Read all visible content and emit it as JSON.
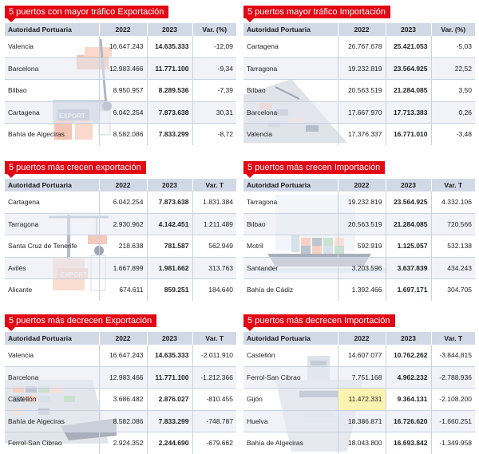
{
  "panels": [
    {
      "title": "5 puertos con mayor tráfico Exportación",
      "headers": [
        "Autoridad Portuaria",
        "2022",
        "2023",
        "Var. (%)"
      ],
      "rows": [
        [
          "Valencia",
          "16.647.243",
          "14.635.333",
          "-12,09"
        ],
        [
          "Barcelona",
          "12.983.466",
          "11.771.100",
          "-9,34"
        ],
        [
          "Bilbao",
          "8.950.957",
          "8.289.536",
          "-7,39"
        ],
        [
          "Cartagena",
          "6.042.254",
          "7.873.638",
          "30,31"
        ],
        [
          "Bahía de Algeciras",
          "8.582.086",
          "7.833.299",
          "-8,72"
        ]
      ],
      "illustration": "export-containers-icon",
      "illustration_label": "EXPORT"
    },
    {
      "title": "5 puertos mayor tráfico Importación",
      "headers": [
        "Autoridad Portuaria",
        "2022",
        "2023",
        "Var. (%)"
      ],
      "rows": [
        [
          "Cartagena",
          "26.767.678",
          "25.421.053",
          "-5,03"
        ],
        [
          "Tarragona",
          "19.232.819",
          "23.564.925",
          "22,52"
        ],
        [
          "Bilbao",
          "20.563.519",
          "21.284.085",
          "3,50"
        ],
        [
          "Barcelona",
          "17.667.970",
          "17.713.383",
          "0,26"
        ],
        [
          "Valencia",
          "17.376.337",
          "16.771.010",
          "-3,48"
        ]
      ],
      "illustration": "port-aerial-icon"
    },
    {
      "title": "5 puertos más crecen exportación",
      "headers": [
        "Autoridad Portuaria",
        "2022",
        "2023",
        "Var. T"
      ],
      "rows": [
        [
          "Cartagena",
          "6.042.254",
          "7.873.638",
          "1.831.384"
        ],
        [
          "Tarragona",
          "2.930.962",
          "4.142.451",
          "1.211.489"
        ],
        [
          "Santa Cruz de Tenerife",
          "218.638",
          "781.587",
          "562.949"
        ],
        [
          "Avilés",
          "1.667.899",
          "1.981.662",
          "313.763"
        ],
        [
          "Alicante",
          "674.611",
          "859.251",
          "184.640"
        ]
      ],
      "illustration": "export-crane-icon",
      "illustration_label": "EXPORT"
    },
    {
      "title": "5 puertos más crecen Importación",
      "headers": [
        "Autoridad Portuaria",
        "2022",
        "2023",
        "Var. T"
      ],
      "rows": [
        [
          "Tarragona",
          "19.232.819",
          "23.564.925",
          "4.332.106"
        ],
        [
          "Bilbao",
          "20.563.519",
          "21.284.085",
          "720.566"
        ],
        [
          "Motril",
          "592.919",
          "1.125.057",
          "532.138"
        ],
        [
          "Santander",
          "3.203.596",
          "3.637.839",
          "434.243"
        ],
        [
          "Bahía de Cádiz",
          "1.392.466",
          "1.697.171",
          "304.705"
        ]
      ],
      "illustration": "cargo-ship-icon"
    },
    {
      "title": "5 puertos más decrecen Exportación",
      "headers": [
        "Autoridad Portuaria",
        "2022",
        "2023",
        "Var. T"
      ],
      "rows": [
        [
          "Valencia",
          "16.647.243",
          "14.635.333",
          "-2.011.910"
        ],
        [
          "Barcelona",
          "12.983.466",
          "11.771.100",
          "-1.212.366"
        ],
        [
          "Castellón",
          "3.686.482",
          "2.876.027",
          "-810.455"
        ],
        [
          "Bahía de Algeciras",
          "8.582.086",
          "7.833.299",
          "-748.787"
        ],
        [
          "Ferrol-San Cibrao",
          "2.924.352",
          "2.244.690",
          "-679.662"
        ]
      ],
      "illustration": "container-ship-icon"
    },
    {
      "title": "5 puertos más decrecen Importación",
      "headers": [
        "Autoridad Portuaria",
        "2022",
        "2023",
        "Var. T"
      ],
      "rows": [
        [
          "Castellón",
          "14.607.077",
          "10.762.262",
          "-3.844.815"
        ],
        [
          "Ferrol-San Cibrao",
          "7.751.168",
          "4.962.232",
          "-2.788.936"
        ],
        [
          "Gijón",
          "11.472.331",
          "9.364.131",
          "-2.108.200"
        ],
        [
          "Huelva",
          "18.386.871",
          "16.726.620",
          "-1.660.251"
        ],
        [
          "Bahía de Algeciras",
          "18.043.800",
          "16.693.842",
          "-1.349.958"
        ]
      ],
      "illustration": "ship-bow-icon"
    }
  ],
  "colors": {
    "accent": "#e30613",
    "header_bg": "#d2d9e6",
    "row_alt": "#e5eaf3"
  }
}
